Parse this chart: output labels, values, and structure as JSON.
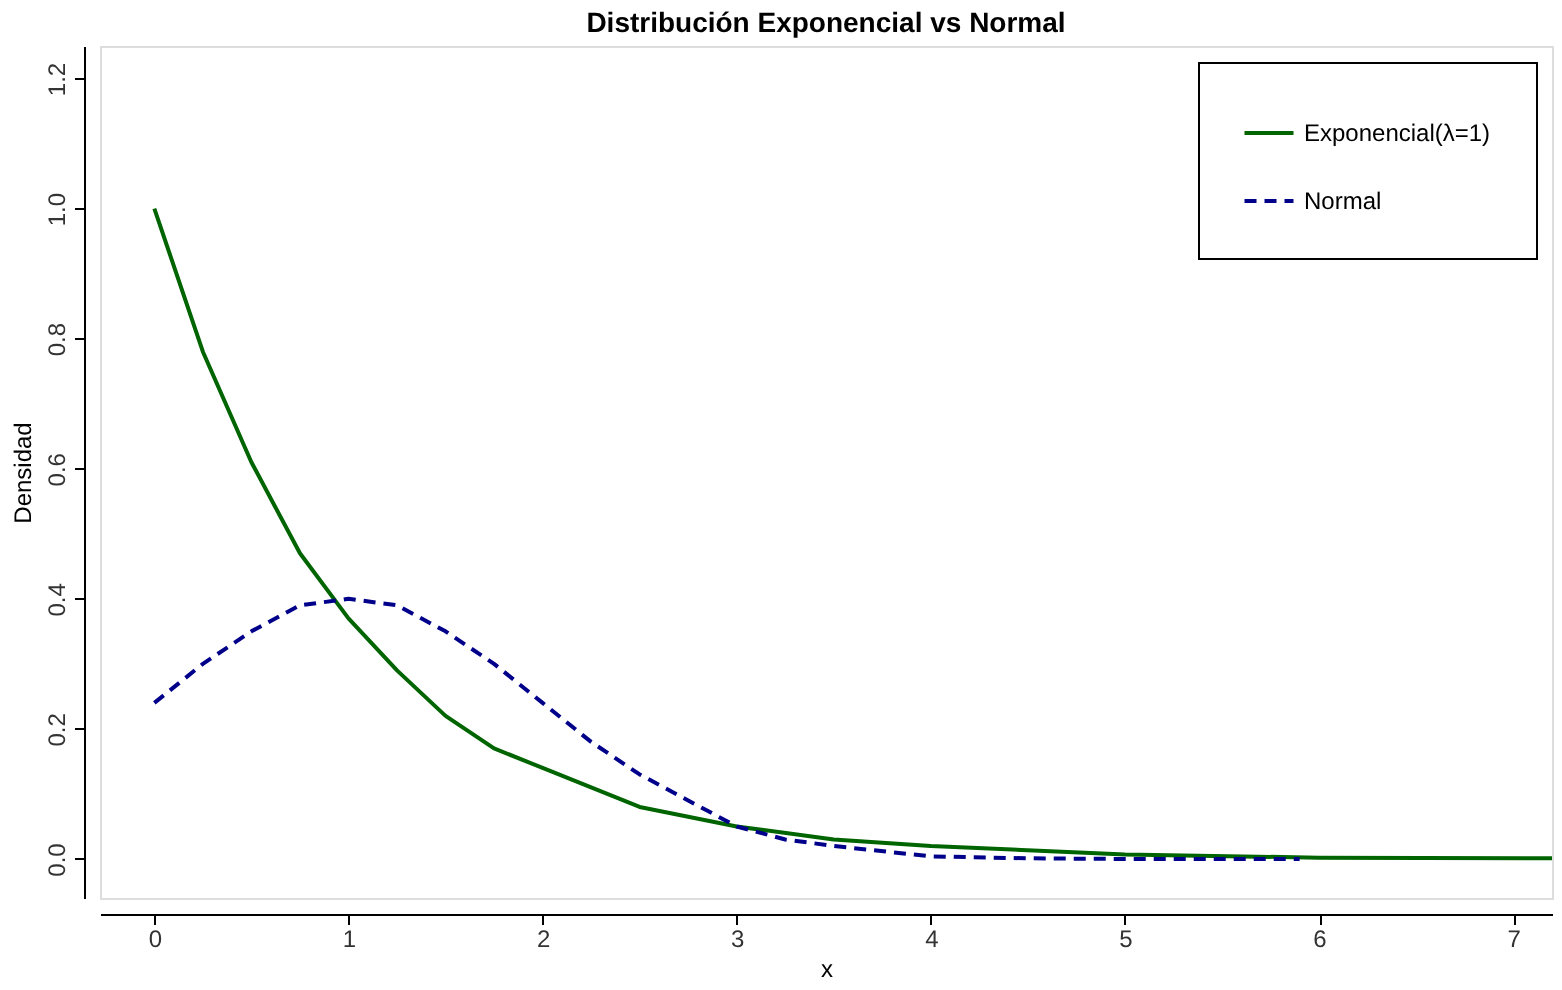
{
  "chart_data": {
    "type": "line",
    "title": "Distribución Exponencial vs Normal",
    "xlabel": "x",
    "ylabel": "Densidad",
    "xlim": [
      -0.28,
      7.2
    ],
    "ylim": [
      -0.06,
      1.25
    ],
    "xticks": [
      0,
      1,
      2,
      3,
      4,
      5,
      6,
      7
    ],
    "yticks": [
      {
        "value": 0,
        "label": "0.0"
      },
      0.2,
      0.4,
      0.6,
      0.8,
      {
        "value": 1,
        "label": "1.0"
      },
      1.2
    ],
    "grid": false,
    "legend": "top right",
    "marker": "none",
    "series": [
      {
        "name": "Exponencial(λ=1)",
        "color": "#006400",
        "line_style": "solid",
        "x": [
          0,
          0.25,
          0.5,
          0.75,
          1,
          1.25,
          1.5,
          1.75,
          2,
          2.5,
          3,
          3.5,
          4,
          5,
          6,
          7.2
        ],
        "values": [
          1.0,
          0.78,
          0.61,
          0.47,
          0.37,
          0.29,
          0.22,
          0.17,
          0.14,
          0.08,
          0.05,
          0.03,
          0.02,
          0.007,
          0.002,
          0.001
        ]
      },
      {
        "name": "Normal",
        "color": "#00008b",
        "line_style": "dashed",
        "x": [
          0,
          0.25,
          0.5,
          0.75,
          1,
          1.25,
          1.5,
          1.75,
          2,
          2.25,
          2.5,
          2.75,
          3,
          3.25,
          3.5,
          4,
          4.5,
          5,
          5.9
        ],
        "values": [
          0.24,
          0.3,
          0.35,
          0.39,
          0.4,
          0.39,
          0.35,
          0.3,
          0.24,
          0.18,
          0.13,
          0.09,
          0.05,
          0.03,
          0.02,
          0.004,
          0.001,
          0.0,
          0.0
        ]
      }
    ]
  }
}
